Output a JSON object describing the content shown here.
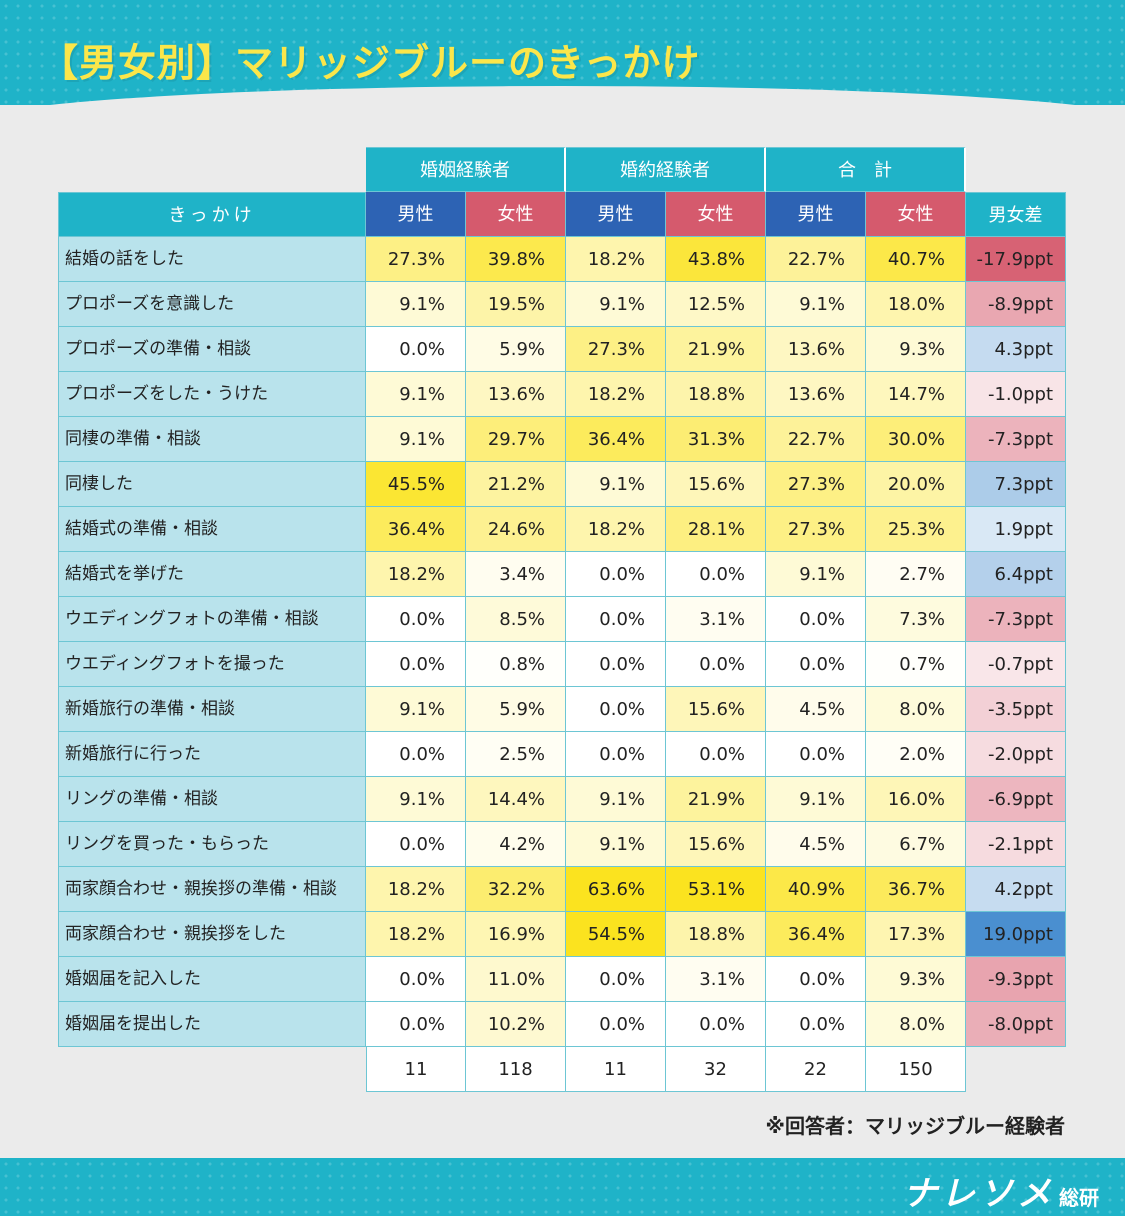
{
  "title": "【男女別】マリッジブルーのきっかけ",
  "note": "※回答者：マリッジブルー経験者",
  "logo": {
    "main": "ナレソメ",
    "sub": "総研"
  },
  "colors": {
    "teal": "#1fb3c8",
    "male_header": "#2d63b4",
    "female_header": "#d55a6d",
    "label_bg": "#b9e3ec",
    "heat_low": "#ffffff",
    "heat_high": "#fbe31f",
    "diff_negative": "#d55a6d",
    "diff_positive": "#4a8fd0"
  },
  "chart_data": {
    "type": "table",
    "title": "【男女別】マリッジブルーのきっかけ",
    "column_groups": [
      "婚姻経験者",
      "婚約経験者",
      "合　計"
    ],
    "sub_headers": [
      "男性",
      "女性"
    ],
    "label_header": "きっかけ",
    "diff_header": "男女差",
    "rows": [
      {
        "label": "結婚の話をした",
        "values": [
          "27.3%",
          "39.8%",
          "18.2%",
          "43.8%",
          "22.7%",
          "40.7%"
        ],
        "diff": "-17.9ppt"
      },
      {
        "label": "プロポーズを意識した",
        "values": [
          "9.1%",
          "19.5%",
          "9.1%",
          "12.5%",
          "9.1%",
          "18.0%"
        ],
        "diff": "-8.9ppt"
      },
      {
        "label": "プロポーズの準備・相談",
        "values": [
          "0.0%",
          "5.9%",
          "27.3%",
          "21.9%",
          "13.6%",
          "9.3%"
        ],
        "diff": "4.3ppt"
      },
      {
        "label": "プロポーズをした・うけた",
        "values": [
          "9.1%",
          "13.6%",
          "18.2%",
          "18.8%",
          "13.6%",
          "14.7%"
        ],
        "diff": "-1.0ppt"
      },
      {
        "label": "同棲の準備・相談",
        "values": [
          "9.1%",
          "29.7%",
          "36.4%",
          "31.3%",
          "22.7%",
          "30.0%"
        ],
        "diff": "-7.3ppt"
      },
      {
        "label": "同棲した",
        "values": [
          "45.5%",
          "21.2%",
          "9.1%",
          "15.6%",
          "27.3%",
          "20.0%"
        ],
        "diff": "7.3ppt"
      },
      {
        "label": "結婚式の準備・相談",
        "values": [
          "36.4%",
          "24.6%",
          "18.2%",
          "28.1%",
          "27.3%",
          "25.3%"
        ],
        "diff": "1.9ppt"
      },
      {
        "label": "結婚式を挙げた",
        "values": [
          "18.2%",
          "3.4%",
          "0.0%",
          "0.0%",
          "9.1%",
          "2.7%"
        ],
        "diff": "6.4ppt"
      },
      {
        "label": "ウエディングフォトの準備・相談",
        "values": [
          "0.0%",
          "8.5%",
          "0.0%",
          "3.1%",
          "0.0%",
          "7.3%"
        ],
        "diff": "-7.3ppt"
      },
      {
        "label": "ウエディングフォトを撮った",
        "values": [
          "0.0%",
          "0.8%",
          "0.0%",
          "0.0%",
          "0.0%",
          "0.7%"
        ],
        "diff": "-0.7ppt"
      },
      {
        "label": "新婚旅行の準備・相談",
        "values": [
          "9.1%",
          "5.9%",
          "0.0%",
          "15.6%",
          "4.5%",
          "8.0%"
        ],
        "diff": "-3.5ppt"
      },
      {
        "label": "新婚旅行に行った",
        "values": [
          "0.0%",
          "2.5%",
          "0.0%",
          "0.0%",
          "0.0%",
          "2.0%"
        ],
        "diff": "-2.0ppt"
      },
      {
        "label": "リングの準備・相談",
        "values": [
          "9.1%",
          "14.4%",
          "9.1%",
          "21.9%",
          "9.1%",
          "16.0%"
        ],
        "diff": "-6.9ppt"
      },
      {
        "label": "リングを買った・もらった",
        "values": [
          "0.0%",
          "4.2%",
          "9.1%",
          "15.6%",
          "4.5%",
          "6.7%"
        ],
        "diff": "-2.1ppt"
      },
      {
        "label": "両家顔合わせ・親挨拶の準備・相談",
        "values": [
          "18.2%",
          "32.2%",
          "63.6%",
          "53.1%",
          "40.9%",
          "36.7%"
        ],
        "diff": "4.2ppt"
      },
      {
        "label": "両家顔合わせ・親挨拶をした",
        "values": [
          "18.2%",
          "16.9%",
          "54.5%",
          "18.8%",
          "36.4%",
          "17.3%"
        ],
        "diff": "19.0ppt"
      },
      {
        "label": "婚姻届を記入した",
        "values": [
          "0.0%",
          "11.0%",
          "0.0%",
          "3.1%",
          "0.0%",
          "9.3%"
        ],
        "diff": "-9.3ppt"
      },
      {
        "label": "婚姻届を提出した",
        "values": [
          "0.0%",
          "10.2%",
          "0.0%",
          "0.0%",
          "0.0%",
          "8.0%"
        ],
        "diff": "-8.0ppt"
      }
    ],
    "counts": [
      "11",
      "118",
      "11",
      "32",
      "22",
      "150"
    ]
  }
}
